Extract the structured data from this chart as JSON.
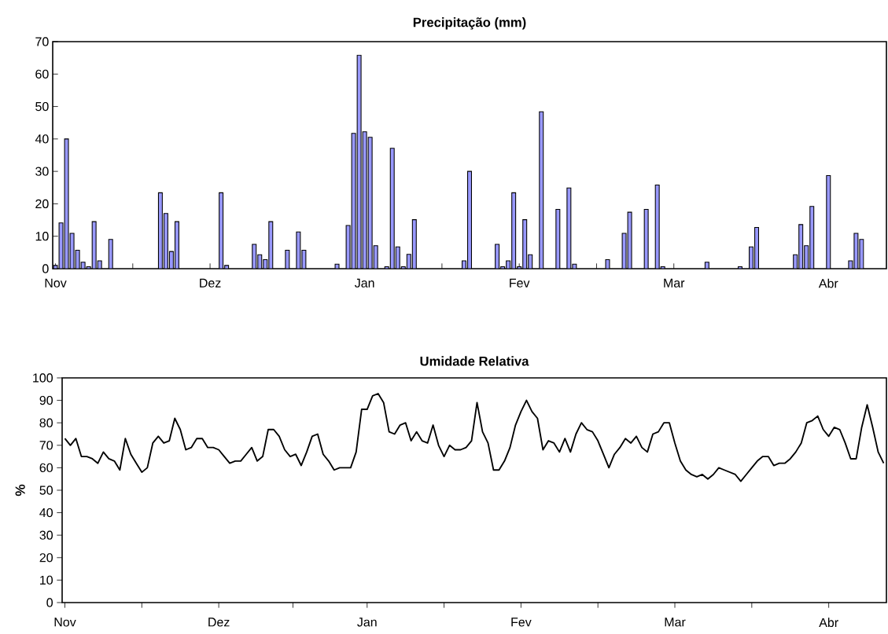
{
  "chart_data": [
    {
      "type": "bar",
      "title": "Precipitação (mm)",
      "categories": [
        "Nov",
        null,
        null,
        null,
        null,
        null,
        null,
        null,
        null,
        null,
        null,
        null,
        null,
        null,
        null,
        null,
        null,
        null,
        null,
        null,
        null,
        null,
        null,
        null,
        null,
        null,
        null,
        null,
        "Dez",
        null,
        null,
        null,
        null,
        null,
        null,
        null,
        null,
        null,
        null,
        null,
        null,
        null,
        null,
        null,
        null,
        null,
        null,
        null,
        null,
        null,
        null,
        null,
        null,
        null,
        null,
        null,
        "Jan",
        null,
        null,
        null,
        null,
        null,
        null,
        null,
        null,
        null,
        null,
        null,
        null,
        null,
        null,
        null,
        null,
        null,
        null,
        null,
        null,
        null,
        null,
        null,
        null,
        null,
        null,
        null,
        "Fev",
        null,
        null,
        null,
        null,
        null,
        null,
        null,
        null,
        null,
        null,
        null,
        null,
        null,
        null,
        null,
        null,
        null,
        null,
        null,
        null,
        null,
        null,
        null,
        null,
        null,
        null,
        null,
        "Mar",
        null,
        null,
        null,
        null,
        null,
        null,
        null,
        null,
        null,
        null,
        null,
        null,
        null,
        null,
        null,
        null,
        null,
        null,
        null,
        null,
        null,
        null,
        null,
        null,
        null,
        null,
        null,
        "Abr",
        null,
        null,
        null,
        null,
        null,
        null,
        null,
        null,
        null,
        null
      ],
      "values": [
        1.0,
        14.1,
        40,
        10.9,
        5.7,
        2.0,
        0.6,
        14.5,
        2.4,
        null,
        9.0,
        null,
        null,
        null,
        null,
        null,
        null,
        null,
        null,
        23.4,
        17.0,
        5.3,
        14.5,
        null,
        null,
        null,
        null,
        null,
        null,
        null,
        23.4,
        1.0,
        null,
        null,
        null,
        null,
        7.5,
        4.3,
        2.8,
        14.5,
        null,
        null,
        5.7,
        null,
        11.3,
        5.7,
        null,
        null,
        null,
        null,
        null,
        1.4,
        null,
        13.3,
        41.7,
        65.8,
        42.2,
        40.5,
        7.1,
        null,
        0.6,
        37.1,
        6.7,
        0.6,
        4.4,
        15.1,
        null,
        null,
        null,
        null,
        null,
        null,
        null,
        null,
        2.4,
        30.0,
        null,
        null,
        null,
        null,
        7.5,
        0.6,
        2.4,
        23.4,
        0.6,
        15.1,
        4.3,
        null,
        48.4,
        null,
        null,
        18.3,
        null,
        24.9,
        1.4,
        null,
        null,
        null,
        null,
        null,
        2.8,
        null,
        null,
        10.9,
        17.4,
        null,
        null,
        18.3,
        null,
        25.8,
        0.6,
        null,
        null,
        null,
        null,
        null,
        null,
        null,
        2.0,
        null,
        null,
        null,
        null,
        null,
        0.6,
        null,
        6.7,
        12.7,
        null,
        null,
        null,
        null,
        null,
        null,
        4.3,
        13.6,
        7.1,
        19.2,
        null,
        null,
        28.7,
        null,
        null,
        null,
        2.4,
        10.9,
        9.0,
        null,
        null,
        null,
        null
      ],
      "color": "#9999ff",
      "ylim": [
        0,
        70
      ],
      "yticks": [
        0,
        10,
        20,
        30,
        40,
        50,
        60,
        70
      ]
    },
    {
      "type": "line",
      "title": "Umidade Relativa",
      "ylabel": "%",
      "categories": [
        "Nov",
        null,
        null,
        null,
        null,
        null,
        null,
        null,
        null,
        null,
        null,
        null,
        null,
        null,
        null,
        null,
        null,
        null,
        null,
        null,
        null,
        null,
        null,
        null,
        null,
        null,
        null,
        null,
        "Dez",
        null,
        null,
        null,
        null,
        null,
        null,
        null,
        null,
        null,
        null,
        null,
        null,
        null,
        null,
        null,
        null,
        null,
        null,
        null,
        null,
        null,
        null,
        null,
        null,
        null,
        null,
        "Jan",
        null,
        null,
        null,
        null,
        null,
        null,
        null,
        null,
        null,
        null,
        null,
        null,
        null,
        null,
        null,
        null,
        null,
        null,
        null,
        null,
        null,
        null,
        null,
        null,
        null,
        null,
        null,
        "Fev",
        null,
        null,
        null,
        null,
        null,
        null,
        null,
        null,
        null,
        null,
        null,
        null,
        null,
        null,
        null,
        null,
        null,
        null,
        null,
        null,
        null,
        null,
        null,
        null,
        null,
        null,
        null,
        "Mar",
        null,
        null,
        null,
        null,
        null,
        null,
        null,
        null,
        null,
        null,
        null,
        null,
        null,
        null,
        null,
        null,
        null,
        null,
        null,
        null,
        null,
        null,
        null,
        null,
        null,
        null,
        null,
        "Abr",
        null,
        null,
        null,
        null,
        null,
        null,
        null,
        null,
        null,
        null
      ],
      "values": [
        73,
        70,
        73,
        65,
        65,
        64,
        62,
        67,
        64,
        63,
        59,
        73,
        66,
        62,
        58,
        60,
        71,
        74,
        71,
        72,
        82,
        77,
        68,
        69,
        73,
        73,
        69,
        69,
        68,
        65,
        62,
        63,
        63,
        66,
        69,
        63,
        65,
        77,
        77,
        74,
        68,
        65,
        66,
        61,
        67,
        74,
        75,
        66,
        63,
        59,
        60,
        60,
        60,
        67,
        86,
        86,
        92,
        93,
        89,
        76,
        75,
        79,
        80,
        72,
        76,
        72,
        71,
        79,
        70,
        65,
        70,
        68,
        68,
        69,
        72,
        89,
        76,
        71,
        59,
        59,
        63,
        69,
        79,
        85,
        90,
        85,
        82,
        68,
        72,
        71,
        67,
        73,
        67,
        75,
        80,
        77,
        76,
        72,
        66,
        60,
        66,
        69,
        73,
        71,
        74,
        69,
        67,
        75,
        76,
        80,
        80,
        71,
        63,
        59,
        57,
        56,
        57,
        55,
        57,
        60,
        59,
        58,
        57,
        54,
        57,
        60,
        63,
        65,
        65,
        61,
        62,
        62,
        64,
        67,
        71,
        80,
        81,
        83,
        77,
        74,
        78,
        77,
        71,
        64,
        64,
        78,
        88,
        78,
        67,
        62
      ],
      "color": "#000000",
      "marker": "none",
      "line_style": "solid",
      "ylim": [
        0,
        100
      ],
      "yticks": [
        0,
        10,
        20,
        30,
        40,
        50,
        60,
        70,
        80,
        90,
        100
      ]
    }
  ]
}
